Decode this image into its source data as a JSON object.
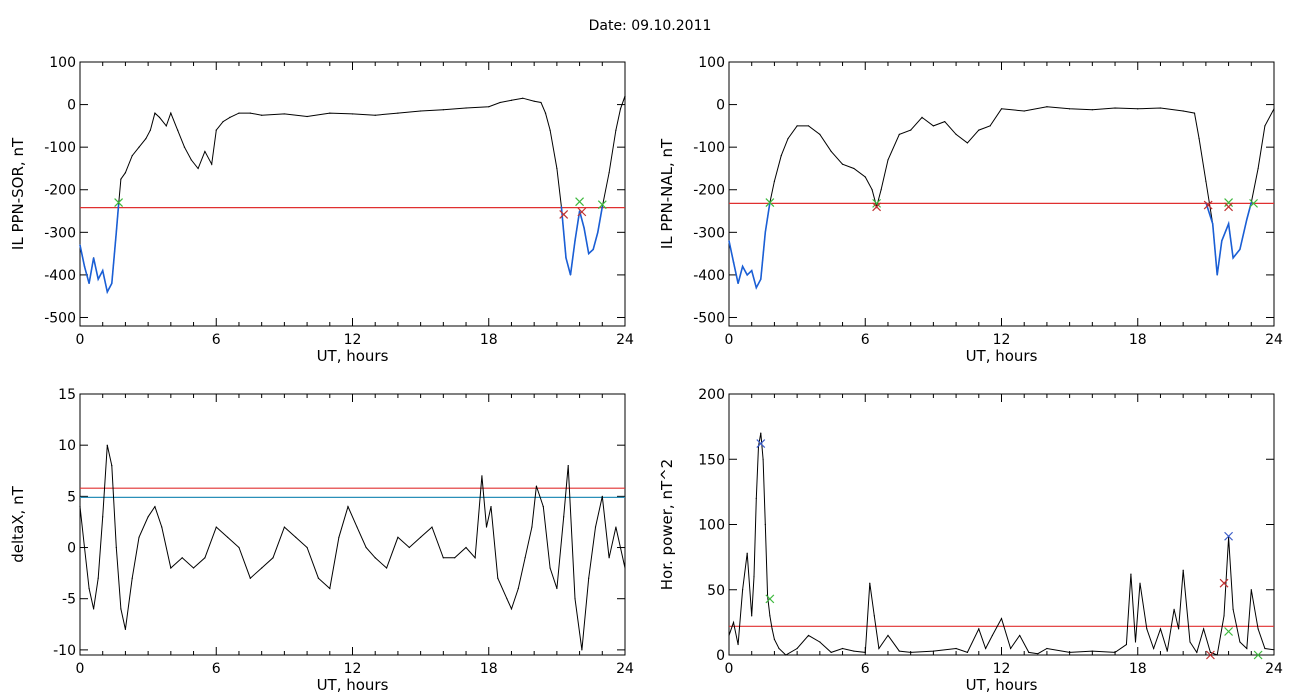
{
  "figure": {
    "title": "Date:  09.10.2011",
    "colors": {
      "axis": "#000000",
      "trace": "#000000",
      "blue_trace": "#1a5fd6",
      "threshold_red": "#e03030",
      "threshold_blue": "#2a8fb8",
      "marker_green": "#3cb83c",
      "marker_red": "#c03030",
      "marker_blue": "#3a5cc8"
    }
  },
  "chart_data": [
    {
      "type": "line",
      "xlabel": "UT, hours",
      "ylabel": "IL PPN-SOR, nT",
      "xlim": [
        0,
        24
      ],
      "ylim": [
        -520,
        100
      ],
      "xticks": [
        0,
        6,
        12,
        18,
        24
      ],
      "yticks": [
        100,
        0,
        -100,
        -200,
        -300,
        -400,
        -500
      ],
      "series": [
        {
          "color": "#000000",
          "x": [
            0,
            0.2,
            0.4,
            0.6,
            0.8,
            1.0,
            1.2,
            1.4,
            1.6,
            1.7,
            1.8,
            2.0,
            2.3,
            2.6,
            2.9,
            3.1,
            3.3,
            3.5,
            3.8,
            4.0,
            4.3,
            4.6,
            4.9,
            5.2,
            5.5,
            5.8,
            6.0,
            6.3,
            6.6,
            7.0,
            7.5,
            8,
            9,
            10,
            11,
            12,
            13,
            14,
            15,
            16,
            17,
            18,
            18.5,
            19,
            19.5,
            20,
            20.3,
            20.5,
            20.7,
            21.0,
            21.2,
            21.4,
            21.6,
            21.8,
            22.0,
            22.2,
            22.4,
            22.6,
            22.8,
            23.0,
            23.3,
            23.6,
            23.8,
            24
          ],
          "y": [
            -330,
            -380,
            -420,
            -360,
            -410,
            -390,
            -440,
            -420,
            -300,
            -235,
            -175,
            -160,
            -120,
            -100,
            -80,
            -60,
            -20,
            -30,
            -50,
            -20,
            -60,
            -100,
            -130,
            -150,
            -110,
            -140,
            -60,
            -40,
            -30,
            -20,
            -20,
            -25,
            -22,
            -28,
            -20,
            -22,
            -25,
            -20,
            -15,
            -12,
            -8,
            -5,
            5,
            10,
            15,
            8,
            5,
            -20,
            -60,
            -150,
            -240,
            -360,
            -400,
            -320,
            -250,
            -290,
            -350,
            -340,
            -300,
            -240,
            -160,
            -60,
            -10,
            20
          ]
        },
        {
          "color": "#1a5fd6",
          "x": [
            0,
            0.2,
            0.4,
            0.6,
            0.8,
            1.0,
            1.2,
            1.4,
            1.6,
            1.7
          ],
          "y": [
            -330,
            -380,
            -420,
            -360,
            -410,
            -390,
            -440,
            -420,
            -300,
            -235
          ]
        },
        {
          "color": "#1a5fd6",
          "x": [
            21.2,
            21.4,
            21.6,
            21.8,
            22.0,
            22.2,
            22.4,
            22.6,
            22.8,
            23.0
          ],
          "y": [
            -240,
            -360,
            -400,
            -320,
            -250,
            -290,
            -350,
            -340,
            -300,
            -240
          ]
        }
      ],
      "threshold_lines": [
        {
          "y": -242,
          "color": "#e03030"
        }
      ],
      "markers": [
        {
          "x": 1.7,
          "y": -230,
          "color": "#3cb83c"
        },
        {
          "x": 21.3,
          "y": -258,
          "color": "#c03030"
        },
        {
          "x": 22.0,
          "y": -228,
          "color": "#3cb83c"
        },
        {
          "x": 22.1,
          "y": -252,
          "color": "#c03030"
        },
        {
          "x": 23.0,
          "y": -235,
          "color": "#3cb83c"
        }
      ]
    },
    {
      "type": "line",
      "xlabel": "UT, hours",
      "ylabel": "IL PPN-NAL, nT",
      "xlim": [
        0,
        24
      ],
      "ylim": [
        -520,
        100
      ],
      "xticks": [
        0,
        6,
        12,
        18,
        24
      ],
      "yticks": [
        100,
        0,
        -100,
        -200,
        -300,
        -400,
        -500
      ],
      "series": [
        {
          "color": "#000000",
          "x": [
            0,
            0.2,
            0.4,
            0.6,
            0.8,
            1.0,
            1.2,
            1.4,
            1.6,
            1.8,
            2.0,
            2.3,
            2.6,
            3.0,
            3.5,
            4.0,
            4.5,
            5.0,
            5.5,
            6.0,
            6.3,
            6.5,
            6.7,
            7.0,
            7.5,
            8.0,
            8.5,
            9.0,
            9.5,
            10.0,
            10.5,
            11.0,
            11.5,
            12,
            13,
            14,
            15,
            16,
            17,
            18,
            19,
            20,
            20.5,
            20.7,
            21.0,
            21.3,
            21.5,
            21.7,
            22.0,
            22.2,
            22.5,
            22.8,
            23.0,
            23.3,
            23.6,
            24
          ],
          "y": [
            -320,
            -370,
            -420,
            -380,
            -400,
            -390,
            -430,
            -410,
            -300,
            -230,
            -180,
            -120,
            -80,
            -50,
            -50,
            -70,
            -110,
            -140,
            -150,
            -170,
            -200,
            -240,
            -200,
            -130,
            -70,
            -60,
            -30,
            -50,
            -40,
            -70,
            -90,
            -60,
            -50,
            -10,
            -15,
            -5,
            -10,
            -12,
            -8,
            -10,
            -8,
            -15,
            -20,
            -80,
            -180,
            -280,
            -400,
            -320,
            -280,
            -360,
            -340,
            -270,
            -230,
            -150,
            -50,
            -10
          ]
        },
        {
          "color": "#1a5fd6",
          "x": [
            0,
            0.2,
            0.4,
            0.6,
            0.8,
            1.0,
            1.2,
            1.4,
            1.6,
            1.8
          ],
          "y": [
            -320,
            -370,
            -420,
            -380,
            -400,
            -390,
            -430,
            -410,
            -300,
            -230
          ]
        },
        {
          "color": "#1a5fd6",
          "x": [
            21.0,
            21.3,
            21.5,
            21.7,
            22.0,
            22.2,
            22.5,
            22.8,
            23.0
          ],
          "y": [
            -230,
            -280,
            -400,
            -320,
            -280,
            -360,
            -340,
            -270,
            -230
          ]
        }
      ],
      "threshold_lines": [
        {
          "y": -232,
          "color": "#e03030"
        }
      ],
      "markers": [
        {
          "x": 1.8,
          "y": -230,
          "color": "#3cb83c"
        },
        {
          "x": 6.5,
          "y": -232,
          "color": "#3cb83c"
        },
        {
          "x": 6.5,
          "y": -240,
          "color": "#c03030"
        },
        {
          "x": 21.1,
          "y": -236,
          "color": "#c03030"
        },
        {
          "x": 22.0,
          "y": -230,
          "color": "#3cb83c"
        },
        {
          "x": 22.0,
          "y": -240,
          "color": "#c03030"
        },
        {
          "x": 23.1,
          "y": -232,
          "color": "#3cb83c"
        }
      ]
    },
    {
      "type": "line",
      "xlabel": "UT, hours",
      "ylabel": "deltaX, nT",
      "xlim": [
        0,
        24
      ],
      "ylim": [
        -10.5,
        15
      ],
      "xticks": [
        0,
        6,
        12,
        18,
        24
      ],
      "yticks": [
        15,
        10,
        5,
        0,
        -5,
        -10
      ],
      "series": [
        {
          "color": "#000000",
          "x": [
            0,
            0.2,
            0.4,
            0.6,
            0.8,
            1.0,
            1.2,
            1.4,
            1.6,
            1.8,
            2.0,
            2.3,
            2.6,
            3.0,
            3.3,
            3.6,
            4.0,
            4.5,
            5.0,
            5.5,
            6.0,
            6.5,
            7.0,
            7.5,
            8.0,
            8.5,
            9.0,
            9.5,
            10.0,
            10.5,
            11.0,
            11.4,
            11.8,
            12.2,
            12.6,
            13.0,
            13.5,
            14.0,
            14.5,
            15.0,
            15.5,
            16.0,
            16.5,
            17.0,
            17.4,
            17.7,
            17.9,
            18.1,
            18.4,
            18.8,
            19.0,
            19.3,
            19.6,
            19.9,
            20.1,
            20.4,
            20.7,
            21.0,
            21.3,
            21.5,
            21.8,
            22.1,
            22.4,
            22.7,
            23.0,
            23.3,
            23.6,
            24
          ],
          "y": [
            4,
            0,
            -4,
            -6,
            -3,
            3,
            10,
            8,
            0,
            -6,
            -8,
            -3,
            1,
            3,
            4,
            2,
            -2,
            -1,
            -2,
            -1,
            2,
            1,
            0,
            -3,
            -2,
            -1,
            2,
            1,
            0,
            -3,
            -4,
            1,
            4,
            2,
            0,
            -1,
            -2,
            1,
            0,
            1,
            2,
            -1,
            -1,
            0,
            -1,
            7,
            2,
            4,
            -3,
            -5,
            -6,
            -4,
            -1,
            2,
            6,
            4,
            -2,
            -4,
            3,
            8,
            -5,
            -10,
            -3,
            2,
            5,
            -1,
            2,
            -2
          ]
        }
      ],
      "threshold_lines": [
        {
          "y": 5.8,
          "color": "#e03030"
        },
        {
          "y": 4.9,
          "color": "#2a8fb8"
        }
      ],
      "markers": []
    },
    {
      "type": "line",
      "xlabel": "UT, hours",
      "ylabel": "Hor. power, nT^2",
      "xlim": [
        0,
        24
      ],
      "ylim": [
        0,
        200
      ],
      "xticks": [
        0,
        6,
        12,
        18,
        24
      ],
      "yticks": [
        200,
        150,
        100,
        50,
        0
      ],
      "series": [
        {
          "color": "#000000",
          "x": [
            0,
            0.2,
            0.4,
            0.6,
            0.8,
            1.0,
            1.1,
            1.2,
            1.3,
            1.4,
            1.5,
            1.6,
            1.7,
            1.8,
            1.9,
            2.0,
            2.2,
            2.5,
            3.0,
            3.5,
            4.0,
            4.5,
            5.0,
            5.5,
            6.0,
            6.2,
            6.4,
            6.6,
            7.0,
            7.5,
            8.0,
            9.0,
            10.0,
            10.5,
            11.0,
            11.3,
            11.6,
            12.0,
            12.4,
            12.8,
            13.2,
            13.6,
            14,
            15,
            16,
            17,
            17.5,
            17.7,
            17.9,
            18.1,
            18.4,
            18.7,
            19.0,
            19.3,
            19.6,
            19.8,
            20.0,
            20.3,
            20.6,
            20.9,
            21.2,
            21.5,
            21.8,
            22.0,
            22.2,
            22.5,
            22.8,
            23.0,
            23.3,
            23.6,
            24
          ],
          "y": [
            15,
            25,
            8,
            50,
            78,
            30,
            60,
            120,
            160,
            170,
            150,
            100,
            45,
            30,
            20,
            12,
            5,
            0,
            5,
            15,
            10,
            2,
            5,
            3,
            2,
            55,
            30,
            5,
            15,
            3,
            2,
            3,
            5,
            2,
            20,
            5,
            15,
            28,
            5,
            15,
            2,
            1,
            5,
            2,
            3,
            2,
            8,
            62,
            10,
            55,
            20,
            5,
            20,
            3,
            35,
            20,
            65,
            10,
            2,
            20,
            2,
            0,
            30,
            90,
            35,
            10,
            5,
            50,
            20,
            5,
            4
          ]
        }
      ],
      "threshold_lines": [
        {
          "y": 22,
          "color": "#e03030"
        }
      ],
      "markers": [
        {
          "x": 1.4,
          "y": 162,
          "color": "#3a5cc8"
        },
        {
          "x": 1.8,
          "y": 43,
          "color": "#3cb83c"
        },
        {
          "x": 21.8,
          "y": 55,
          "color": "#c03030"
        },
        {
          "x": 22.0,
          "y": 91,
          "color": "#3a5cc8"
        },
        {
          "x": 22.0,
          "y": 18,
          "color": "#3cb83c"
        },
        {
          "x": 21.2,
          "y": 0,
          "color": "#c03030"
        },
        {
          "x": 23.3,
          "y": 0,
          "color": "#3cb83c"
        }
      ]
    }
  ]
}
